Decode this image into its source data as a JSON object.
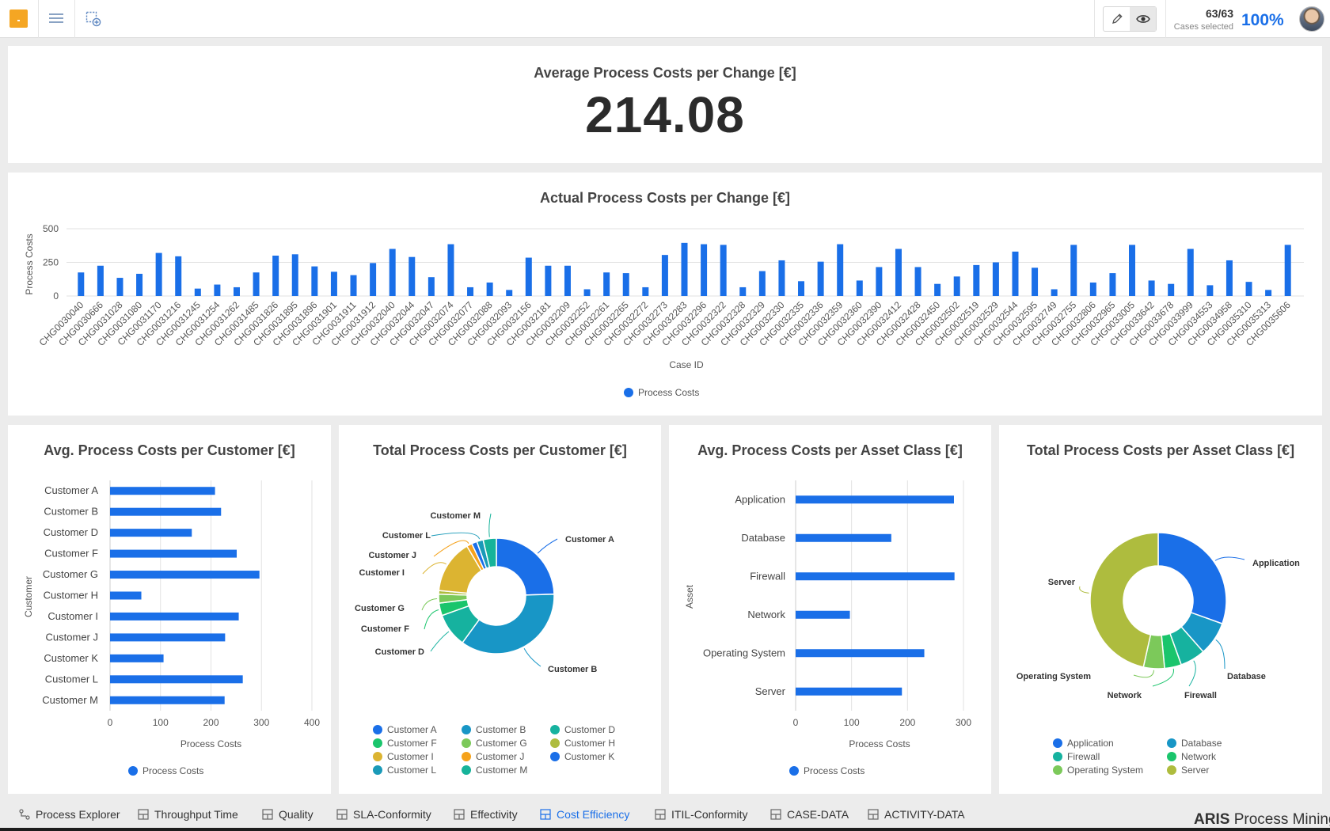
{
  "topbar": {
    "cases_count": "63/63",
    "cases_label": "Cases selected",
    "cases_pct": "100%"
  },
  "kpi": {
    "title": "Average Process Costs per Change [€]",
    "value": "214.08"
  },
  "charts": {
    "actual_costs": {
      "title": "Actual Process Costs per Change [€]"
    },
    "avg_customer": {
      "title": "Avg. Process Costs per Customer [€]"
    },
    "total_customer": {
      "title": "Total Process Costs per Customer [€]"
    },
    "avg_asset": {
      "title": "Avg. Process Costs per Asset Class [€]"
    },
    "total_asset": {
      "title": "Total Process Costs per Asset Class [€]"
    }
  },
  "chart_data": [
    {
      "type": "bar",
      "id": "actual_costs",
      "title": "Actual Process Costs per Change [€]",
      "xlabel": "Case ID",
      "ylabel": "Process Costs",
      "ylim": [
        0,
        500
      ],
      "yticks": [
        0,
        250,
        500
      ],
      "legend": "bottom",
      "grid": true,
      "series": [
        {
          "name": "Process Costs",
          "color": "#1a6fe8"
        }
      ],
      "categories": [
        "CHG0030040",
        "CHG0030666",
        "CHG0031028",
        "CHG0031080",
        "CHG0031170",
        "CHG0031216",
        "CHG0031245",
        "CHG0031254",
        "CHG0031262",
        "CHG0031485",
        "CHG0031826",
        "CHG0031895",
        "CHG0031896",
        "CHG0031901",
        "CHG0031911",
        "CHG0031912",
        "CHG0032040",
        "CHG0032044",
        "CHG0032047",
        "CHG0032074",
        "CHG0032077",
        "CHG0032088",
        "CHG0032093",
        "CHG0032156",
        "CHG0032181",
        "CHG0032209",
        "CHG0032252",
        "CHG0032261",
        "CHG0032265",
        "CHG0032272",
        "CHG0032273",
        "CHG0032283",
        "CHG0032296",
        "CHG0032322",
        "CHG0032328",
        "CHG0032329",
        "CHG0032330",
        "CHG0032335",
        "CHG0032336",
        "CHG0032359",
        "CHG0032360",
        "CHG0032390",
        "CHG0032412",
        "CHG0032428",
        "CHG0032450",
        "CHG0032502",
        "CHG0032519",
        "CHG0032529",
        "CHG0032544",
        "CHG0032595",
        "CHG0032749",
        "CHG0032755",
        "CHG0032806",
        "CHG0032965",
        "CHG0033005",
        "CHG0033642",
        "CHG0033678",
        "CHG0033999",
        "CHG0034553",
        "CHG0034958",
        "CHG0035310",
        "CHG0035313",
        "CHG0035606"
      ],
      "values": [
        175,
        225,
        135,
        165,
        320,
        295,
        55,
        85,
        65,
        175,
        300,
        310,
        220,
        180,
        155,
        245,
        350,
        290,
        140,
        385,
        65,
        100,
        45,
        285,
        225,
        225,
        50,
        175,
        170,
        65,
        305,
        395,
        385,
        380,
        65,
        185,
        265,
        110,
        255,
        385,
        115,
        215,
        350,
        215,
        90,
        145,
        230,
        250,
        330,
        210,
        50,
        380,
        100,
        170,
        380,
        115,
        90,
        350,
        80,
        265,
        105,
        45,
        380
      ]
    },
    {
      "type": "bar",
      "orientation": "horizontal",
      "id": "avg_customer",
      "title": "Avg. Process Costs per Customer [€]",
      "xlabel": "Process Costs",
      "ylabel": "Customer",
      "xlim": [
        0,
        400
      ],
      "xticks": [
        0,
        100,
        200,
        300,
        400
      ],
      "legend": "bottom",
      "grid": true,
      "series": [
        {
          "name": "Process Costs",
          "color": "#1a6fe8"
        }
      ],
      "categories": [
        "Customer A",
        "Customer B",
        "Customer D",
        "Customer F",
        "Customer G",
        "Customer H",
        "Customer I",
        "Customer J",
        "Customer K",
        "Customer L",
        "Customer M"
      ],
      "values": [
        208,
        220,
        162,
        251,
        296,
        62,
        255,
        228,
        106,
        263,
        227
      ]
    },
    {
      "type": "pie",
      "donut": true,
      "id": "total_customer",
      "title": "Total Process Costs per Customer [€]",
      "legend": "bottom",
      "categories": [
        "Customer A",
        "Customer B",
        "Customer D",
        "Customer F",
        "Customer G",
        "Customer H",
        "Customer I",
        "Customer J",
        "Customer K",
        "Customer L",
        "Customer M"
      ],
      "values": [
        24.5,
        35.5,
        9.5,
        3.5,
        2.5,
        1.0,
        15.0,
        1.5,
        1.5,
        1.8,
        3.7
      ],
      "colors": [
        "#1a6fe8",
        "#1896c6",
        "#16b29f",
        "#1ac56c",
        "#7cc95a",
        "#aebc3e",
        "#dcb431",
        "#f5a21b",
        "#1a6fe8",
        "#1a9ab8",
        "#16b39a"
      ],
      "labeled": [
        "Customer A",
        "Customer B",
        "Customer D",
        "Customer F",
        "Customer G",
        "Customer I",
        "Customer J",
        "Customer L",
        "Customer M"
      ]
    },
    {
      "type": "bar",
      "orientation": "horizontal",
      "id": "avg_asset",
      "title": "Avg. Process Costs per Asset Class [€]",
      "xlabel": "Process Costs",
      "ylabel": "Asset",
      "xlim": [
        0,
        300
      ],
      "xticks": [
        0,
        100,
        200,
        300
      ],
      "legend": "bottom",
      "grid": true,
      "series": [
        {
          "name": "Process Costs",
          "color": "#1a6fe8"
        }
      ],
      "categories": [
        "Application",
        "Database",
        "Firewall",
        "Network",
        "Operating System",
        "Server"
      ],
      "values": [
        283,
        171,
        284,
        97,
        230,
        190
      ]
    },
    {
      "type": "pie",
      "donut": true,
      "id": "total_asset",
      "title": "Total Process Costs per Asset Class [€]",
      "legend": "bottom",
      "categories": [
        "Application",
        "Database",
        "Firewall",
        "Network",
        "Operating System",
        "Server"
      ],
      "values": [
        30.5,
        8.0,
        6.0,
        4.0,
        5.0,
        46.5
      ],
      "colors": [
        "#1a6fe8",
        "#1896c6",
        "#16b29f",
        "#1ac56c",
        "#7cc95a",
        "#aebc3e"
      ]
    }
  ],
  "tabs": [
    {
      "label": "Process Explorer",
      "icon": "process-icon",
      "active": false
    },
    {
      "label": "Throughput Time",
      "icon": "dashboard-icon",
      "active": false
    },
    {
      "label": "Quality",
      "icon": "dashboard-icon",
      "active": false
    },
    {
      "label": "SLA-Conformity",
      "icon": "dashboard-icon",
      "active": false
    },
    {
      "label": "Effectivity",
      "icon": "dashboard-icon",
      "active": false
    },
    {
      "label": "Cost Efficiency",
      "icon": "dashboard-icon",
      "active": true
    },
    {
      "label": "ITIL-Conformity",
      "icon": "dashboard-icon",
      "active": false
    },
    {
      "label": "CASE-DATA",
      "icon": "dashboard-icon",
      "active": false
    },
    {
      "label": "ACTIVITY-DATA",
      "icon": "dashboard-icon",
      "active": false
    }
  ],
  "brand": {
    "bold": "ARIS",
    "rest": "Process Mining"
  },
  "colors": {
    "accent": "#1a6fe8",
    "logo": "#f5a623"
  }
}
